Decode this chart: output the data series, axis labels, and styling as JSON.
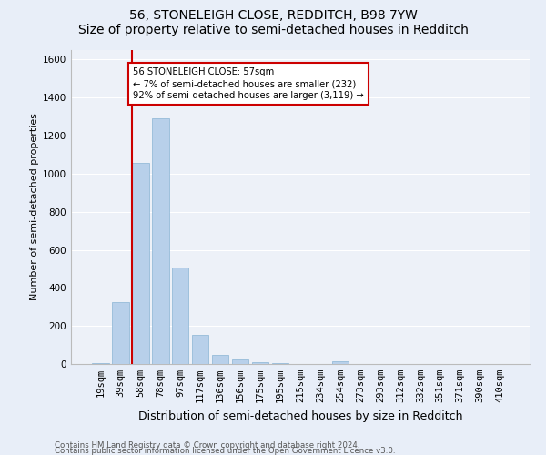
{
  "title": "56, STONELEIGH CLOSE, REDDITCH, B98 7YW",
  "subtitle": "Size of property relative to semi-detached houses in Redditch",
  "xlabel": "Distribution of semi-detached houses by size in Redditch",
  "ylabel": "Number of semi-detached properties",
  "bar_labels": [
    "19sqm",
    "39sqm",
    "58sqm",
    "78sqm",
    "97sqm",
    "117sqm",
    "136sqm",
    "156sqm",
    "175sqm",
    "195sqm",
    "215sqm",
    "234sqm",
    "254sqm",
    "273sqm",
    "293sqm",
    "312sqm",
    "332sqm",
    "351sqm",
    "371sqm",
    "390sqm",
    "410sqm"
  ],
  "bar_values": [
    5,
    325,
    1055,
    1290,
    505,
    155,
    50,
    25,
    10,
    5,
    0,
    0,
    12,
    0,
    0,
    0,
    0,
    0,
    0,
    0,
    0
  ],
  "bar_color": "#b8d0ea",
  "bar_edge_color": "#8ab4d4",
  "vline_x_index": 2,
  "vline_color": "#cc0000",
  "annotation_line1": "56 STONELEIGH CLOSE: 57sqm",
  "annotation_line2": "← 7% of semi-detached houses are smaller (232)",
  "annotation_line3": "92% of semi-detached houses are larger (3,119) →",
  "ylim": [
    0,
    1650
  ],
  "yticks": [
    0,
    200,
    400,
    600,
    800,
    1000,
    1200,
    1400,
    1600
  ],
  "footnote1": "Contains HM Land Registry data © Crown copyright and database right 2024.",
  "footnote2": "Contains public sector information licensed under the Open Government Licence v3.0.",
  "bg_color": "#e8eef8",
  "plot_bg_color": "#edf1f8",
  "title_fontsize": 10,
  "axis_label_fontsize": 8,
  "tick_fontsize": 7.5
}
